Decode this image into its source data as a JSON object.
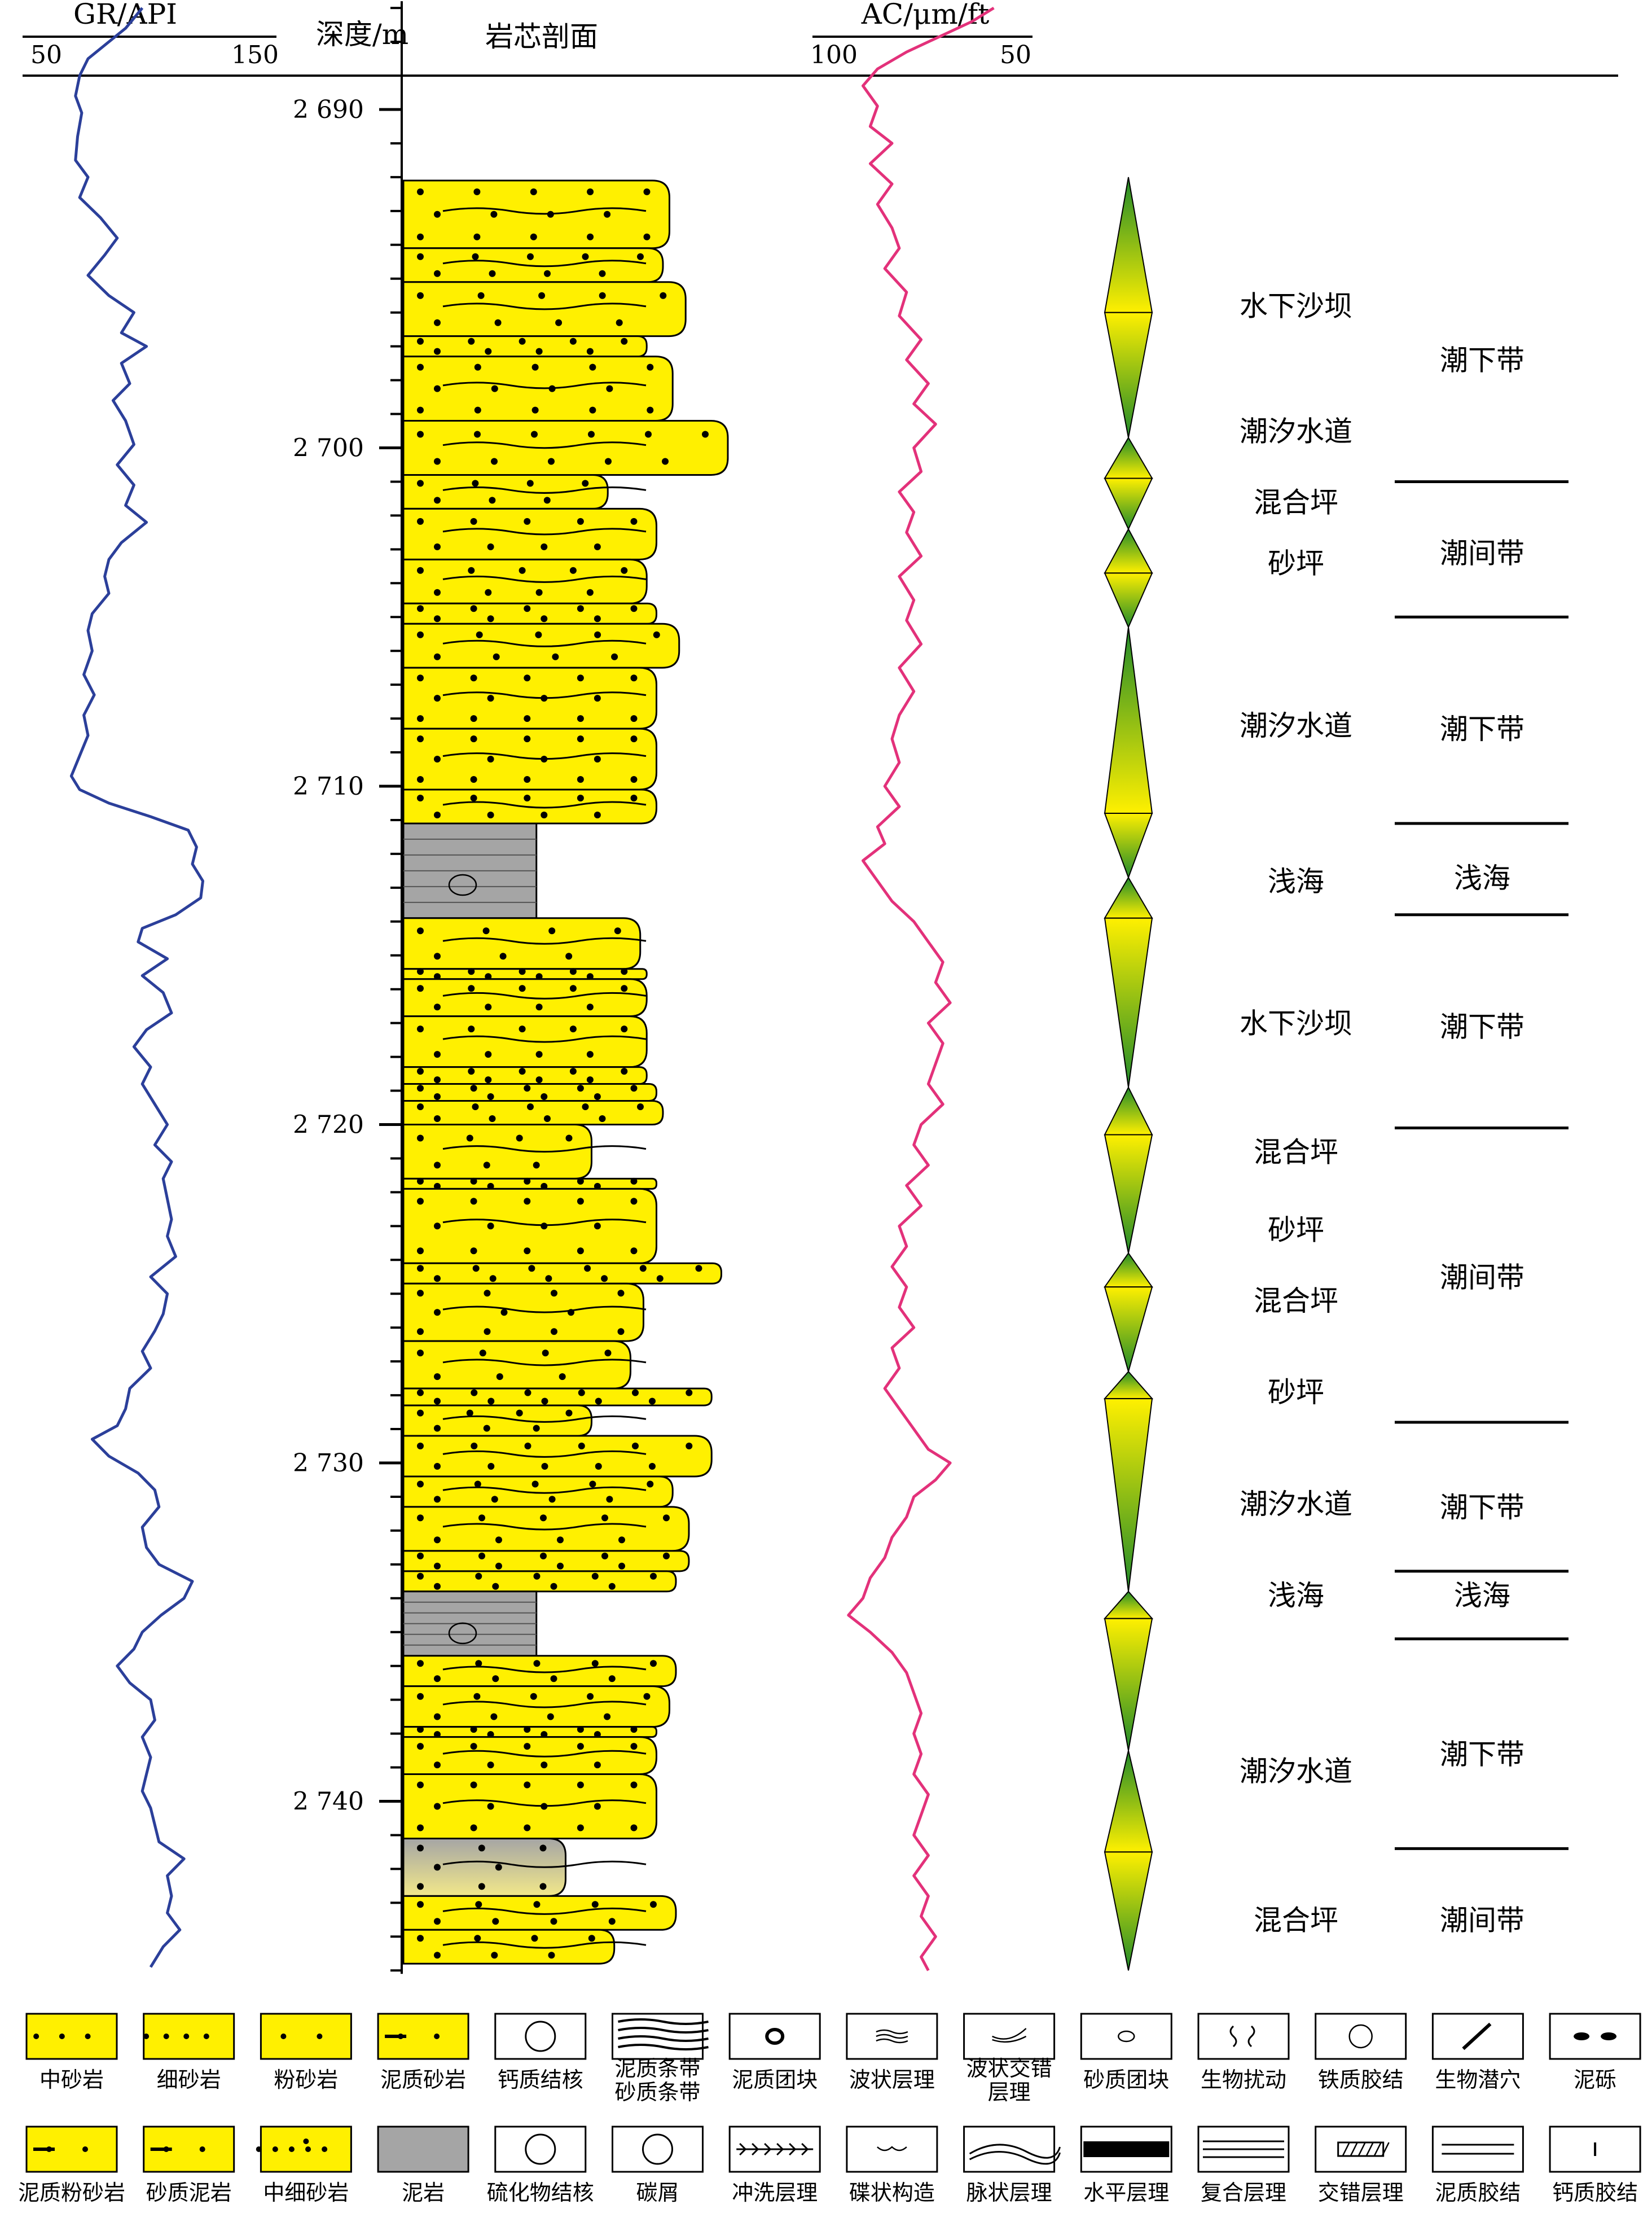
{
  "headers": {
    "gr": "GR/API",
    "gr_min": "50",
    "gr_max": "150",
    "depth": "深度/m",
    "core": "岩芯剖面",
    "ac": "AC/μm/ft",
    "ac_min": "100",
    "ac_max": "50"
  },
  "depth_scale": {
    "top": 2686.8,
    "bottom": 2745.1,
    "labels": [
      "2 690",
      "2 700",
      "2 710",
      "2 720",
      "2 730",
      "2 740"
    ],
    "values": [
      2690,
      2700,
      2710,
      2720,
      2730,
      2740
    ]
  },
  "colors": {
    "gr_curve": "#2b3f9a",
    "ac_curve": "#e3317a",
    "sand": "#fff000",
    "mud": "#a5a5a5",
    "cycle_green": "#1f8a2a",
    "cycle_yellow": "#fff000"
  },
  "lithology": [
    {
      "top": 2692.1,
      "bottom": 2694.1,
      "type": "sand",
      "grain": 0.82
    },
    {
      "top": 2694.1,
      "bottom": 2695.1,
      "type": "sand",
      "grain": 0.8
    },
    {
      "top": 2695.1,
      "bottom": 2696.7,
      "type": "sand",
      "grain": 0.87
    },
    {
      "top": 2696.7,
      "bottom": 2697.3,
      "type": "sand",
      "grain": 0.75
    },
    {
      "top": 2697.3,
      "bottom": 2699.2,
      "type": "sand",
      "grain": 0.83
    },
    {
      "top": 2699.2,
      "bottom": 2700.8,
      "type": "sand",
      "grain": 1.0
    },
    {
      "top": 2700.8,
      "bottom": 2701.8,
      "type": "sand",
      "grain": 0.63
    },
    {
      "top": 2701.8,
      "bottom": 2703.3,
      "type": "sand",
      "grain": 0.78
    },
    {
      "top": 2703.3,
      "bottom": 2704.6,
      "type": "sand",
      "grain": 0.75
    },
    {
      "top": 2704.6,
      "bottom": 2705.2,
      "type": "sand",
      "grain": 0.78
    },
    {
      "top": 2705.2,
      "bottom": 2706.5,
      "type": "sand",
      "grain": 0.85
    },
    {
      "top": 2706.5,
      "bottom": 2708.3,
      "type": "sand",
      "grain": 0.78
    },
    {
      "top": 2708.3,
      "bottom": 2710.1,
      "type": "sand",
      "grain": 0.78
    },
    {
      "top": 2710.1,
      "bottom": 2711.1,
      "type": "sand",
      "grain": 0.78
    },
    {
      "top": 2711.1,
      "bottom": 2713.9,
      "type": "mud",
      "grain": 0.41
    },
    {
      "top": 2713.9,
      "bottom": 2715.4,
      "type": "sand",
      "grain": 0.73
    },
    {
      "top": 2715.4,
      "bottom": 2715.7,
      "type": "sand",
      "grain": 0.75
    },
    {
      "top": 2715.7,
      "bottom": 2716.8,
      "type": "sand",
      "grain": 0.75
    },
    {
      "top": 2716.8,
      "bottom": 2718.3,
      "type": "sand",
      "grain": 0.75
    },
    {
      "top": 2718.3,
      "bottom": 2718.8,
      "type": "sand",
      "grain": 0.75
    },
    {
      "top": 2718.8,
      "bottom": 2719.3,
      "type": "sand",
      "grain": 0.78
    },
    {
      "top": 2719.3,
      "bottom": 2720.0,
      "type": "sand",
      "grain": 0.8
    },
    {
      "top": 2720.0,
      "bottom": 2721.6,
      "type": "silt",
      "grain": 0.58
    },
    {
      "top": 2721.6,
      "bottom": 2721.9,
      "type": "sand",
      "grain": 0.78
    },
    {
      "top": 2721.9,
      "bottom": 2724.1,
      "type": "sand",
      "grain": 0.78
    },
    {
      "top": 2724.1,
      "bottom": 2724.7,
      "type": "sand",
      "grain": 0.98
    },
    {
      "top": 2724.7,
      "bottom": 2726.4,
      "type": "sand",
      "grain": 0.74
    },
    {
      "top": 2726.4,
      "bottom": 2727.8,
      "type": "sand",
      "grain": 0.7
    },
    {
      "top": 2727.8,
      "bottom": 2728.3,
      "type": "sand",
      "grain": 0.95
    },
    {
      "top": 2728.3,
      "bottom": 2729.2,
      "type": "silt",
      "grain": 0.58
    },
    {
      "top": 2729.2,
      "bottom": 2730.4,
      "type": "sand",
      "grain": 0.95
    },
    {
      "top": 2730.4,
      "bottom": 2731.3,
      "type": "sand",
      "grain": 0.83
    },
    {
      "top": 2731.3,
      "bottom": 2732.6,
      "type": "sand",
      "grain": 0.88
    },
    {
      "top": 2732.6,
      "bottom": 2733.2,
      "type": "sand",
      "grain": 0.88
    },
    {
      "top": 2733.2,
      "bottom": 2733.8,
      "type": "sand",
      "grain": 0.84
    },
    {
      "top": 2733.8,
      "bottom": 2735.7,
      "type": "mud",
      "grain": 0.41
    },
    {
      "top": 2735.7,
      "bottom": 2736.6,
      "type": "sand",
      "grain": 0.84
    },
    {
      "top": 2736.6,
      "bottom": 2737.8,
      "type": "sand",
      "grain": 0.82
    },
    {
      "top": 2737.8,
      "bottom": 2738.1,
      "type": "sand",
      "grain": 0.78
    },
    {
      "top": 2738.1,
      "bottom": 2739.2,
      "type": "sand",
      "grain": 0.78
    },
    {
      "top": 2739.2,
      "bottom": 2741.1,
      "type": "sand",
      "grain": 0.78
    },
    {
      "top": 2741.1,
      "bottom": 2742.8,
      "type": "mixed",
      "grain": 0.5
    },
    {
      "top": 2742.8,
      "bottom": 2743.8,
      "type": "sand",
      "grain": 0.84
    },
    {
      "top": 2743.8,
      "bottom": 2744.8,
      "type": "sand",
      "grain": 0.65
    }
  ],
  "cycles": [
    {
      "top": 2692.0,
      "mid": 2696.0,
      "bottom": 2699.7
    },
    {
      "top": 2699.7,
      "mid": 2700.9,
      "bottom": 2702.4
    },
    {
      "top": 2702.4,
      "mid": 2703.7,
      "bottom": 2705.3
    },
    {
      "top": 2705.3,
      "mid": 2710.8,
      "bottom": 2712.7
    },
    {
      "top": 2712.7,
      "mid": 2713.9,
      "bottom": 2718.9
    },
    {
      "top": 2718.9,
      "mid": 2720.3,
      "bottom": 2723.8
    },
    {
      "top": 2723.8,
      "mid": 2724.8,
      "bottom": 2727.3
    },
    {
      "top": 2727.3,
      "mid": 2728.1,
      "bottom": 2733.8
    },
    {
      "top": 2733.8,
      "mid": 2734.6,
      "bottom": 2738.5
    },
    {
      "top": 2738.5,
      "mid": 2741.5,
      "bottom": 2745.0
    }
  ],
  "subfacies": [
    {
      "label": "水下沙坝",
      "depth": 2695.8
    },
    {
      "label": "潮汐水道",
      "depth": 2699.5
    },
    {
      "label": "混合坪",
      "depth": 2701.6
    },
    {
      "label": "砂坪",
      "depth": 2703.4
    },
    {
      "label": "潮汐水道",
      "depth": 2708.2
    },
    {
      "label": "浅海",
      "depth": 2712.8
    },
    {
      "label": "水下沙坝",
      "depth": 2717.0
    },
    {
      "label": "混合坪",
      "depth": 2720.8
    },
    {
      "label": "砂坪",
      "depth": 2723.1
    },
    {
      "label": "混合坪",
      "depth": 2725.2
    },
    {
      "label": "砂坪",
      "depth": 2727.9
    },
    {
      "label": "潮汐水道",
      "depth": 2731.2
    },
    {
      "label": "浅海",
      "depth": 2733.9
    },
    {
      "label": "潮汐水道",
      "depth": 2739.1
    },
    {
      "label": "混合坪",
      "depth": 2743.5
    }
  ],
  "microfacies": [
    {
      "label": "潮下带",
      "depth": 2697.4
    },
    {
      "label": "潮间带",
      "depth": 2703.1
    },
    {
      "label": "潮下带",
      "depth": 2708.3
    },
    {
      "label": "浅海",
      "depth": 2712.7
    },
    {
      "label": "潮下带",
      "depth": 2717.1
    },
    {
      "label": "潮间带",
      "depth": 2724.5
    },
    {
      "label": "潮下带",
      "depth": 2731.3
    },
    {
      "label": "浅海",
      "depth": 2733.9
    },
    {
      "label": "潮下带",
      "depth": 2738.6
    },
    {
      "label": "潮间带",
      "depth": 2743.5
    }
  ],
  "boundaries": [
    2701.0,
    2705.0,
    2711.1,
    2713.8,
    2720.1,
    2728.8,
    2733.2,
    2735.2,
    2741.4
  ],
  "gr_curve": [
    [
      2687.0,
      96
    ],
    [
      2687.6,
      88
    ],
    [
      2688.1,
      78
    ],
    [
      2688.5,
      70
    ],
    [
      2689.0,
      66
    ],
    [
      2689.6,
      64
    ],
    [
      2690.1,
      67
    ],
    [
      2690.8,
      65
    ],
    [
      2691.5,
      64
    ],
    [
      2692.0,
      70
    ],
    [
      2692.6,
      66
    ],
    [
      2693.2,
      76
    ],
    [
      2693.8,
      84
    ],
    [
      2694.3,
      78
    ],
    [
      2694.9,
      70
    ],
    [
      2695.5,
      80
    ],
    [
      2696.0,
      92
    ],
    [
      2696.6,
      86
    ],
    [
      2697.0,
      98
    ],
    [
      2697.5,
      86
    ],
    [
      2698.1,
      90
    ],
    [
      2698.6,
      82
    ],
    [
      2699.2,
      88
    ],
    [
      2699.9,
      92
    ],
    [
      2700.5,
      84
    ],
    [
      2701.1,
      92
    ],
    [
      2701.7,
      88
    ],
    [
      2702.2,
      98
    ],
    [
      2702.8,
      86
    ],
    [
      2703.3,
      80
    ],
    [
      2703.8,
      78
    ],
    [
      2704.3,
      80
    ],
    [
      2704.9,
      72
    ],
    [
      2705.4,
      70
    ],
    [
      2706.0,
      72
    ],
    [
      2706.7,
      68
    ],
    [
      2707.3,
      73
    ],
    [
      2707.9,
      68
    ],
    [
      2708.5,
      70
    ],
    [
      2709.1,
      66
    ],
    [
      2709.7,
      62
    ],
    [
      2710.1,
      66
    ],
    [
      2710.5,
      80
    ],
    [
      2710.9,
      100
    ],
    [
      2711.3,
      118
    ],
    [
      2711.8,
      122
    ],
    [
      2712.3,
      120
    ],
    [
      2712.8,
      125
    ],
    [
      2713.3,
      124
    ],
    [
      2713.8,
      112
    ],
    [
      2714.2,
      96
    ],
    [
      2714.6,
      94
    ],
    [
      2715.1,
      108
    ],
    [
      2715.6,
      96
    ],
    [
      2716.1,
      106
    ],
    [
      2716.7,
      110
    ],
    [
      2717.2,
      98
    ],
    [
      2717.7,
      92
    ],
    [
      2718.3,
      100
    ],
    [
      2718.8,
      96
    ],
    [
      2719.4,
      102
    ],
    [
      2720.0,
      108
    ],
    [
      2720.6,
      102
    ],
    [
      2721.1,
      110
    ],
    [
      2721.6,
      106
    ],
    [
      2722.2,
      108
    ],
    [
      2722.8,
      110
    ],
    [
      2723.3,
      108
    ],
    [
      2723.9,
      112
    ],
    [
      2724.5,
      100
    ],
    [
      2725.0,
      108
    ],
    [
      2725.6,
      106
    ],
    [
      2726.1,
      102
    ],
    [
      2726.7,
      96
    ],
    [
      2727.2,
      100
    ],
    [
      2727.8,
      90
    ],
    [
      2728.4,
      88
    ],
    [
      2728.9,
      84
    ],
    [
      2729.3,
      72
    ],
    [
      2729.8,
      80
    ],
    [
      2730.3,
      94
    ],
    [
      2730.8,
      102
    ],
    [
      2731.3,
      104
    ],
    [
      2731.9,
      96
    ],
    [
      2732.5,
      98
    ],
    [
      2733.0,
      104
    ],
    [
      2733.5,
      120
    ],
    [
      2734.0,
      116
    ],
    [
      2734.5,
      105
    ],
    [
      2735.0,
      96
    ],
    [
      2735.5,
      92
    ],
    [
      2736.0,
      84
    ],
    [
      2736.5,
      90
    ],
    [
      2737.0,
      100
    ],
    [
      2737.6,
      102
    ],
    [
      2738.1,
      96
    ],
    [
      2738.7,
      100
    ],
    [
      2739.2,
      98
    ],
    [
      2739.7,
      96
    ],
    [
      2740.2,
      100
    ],
    [
      2740.7,
      102
    ],
    [
      2741.2,
      104
    ],
    [
      2741.7,
      116
    ],
    [
      2742.2,
      108
    ],
    [
      2742.8,
      110
    ],
    [
      2743.3,
      108
    ],
    [
      2743.8,
      114
    ],
    [
      2744.3,
      106
    ],
    [
      2744.9,
      100
    ]
  ],
  "ac_curve": [
    [
      2687.0,
      56
    ],
    [
      2687.4,
      62
    ],
    [
      2687.9,
      72
    ],
    [
      2688.3,
      80
    ],
    [
      2688.8,
      88
    ],
    [
      2689.3,
      92
    ],
    [
      2689.9,
      88
    ],
    [
      2690.5,
      90
    ],
    [
      2691.0,
      84
    ],
    [
      2691.6,
      90
    ],
    [
      2692.2,
      84
    ],
    [
      2692.8,
      88
    ],
    [
      2693.5,
      84
    ],
    [
      2694.1,
      82
    ],
    [
      2694.7,
      86
    ],
    [
      2695.4,
      80
    ],
    [
      2696.1,
      82
    ],
    [
      2696.8,
      76
    ],
    [
      2697.4,
      80
    ],
    [
      2698.1,
      74
    ],
    [
      2698.7,
      78
    ],
    [
      2699.3,
      72
    ],
    [
      2700.0,
      78
    ],
    [
      2700.7,
      76
    ],
    [
      2701.3,
      82
    ],
    [
      2701.9,
      78
    ],
    [
      2702.5,
      80
    ],
    [
      2703.2,
      76
    ],
    [
      2703.8,
      82
    ],
    [
      2704.5,
      78
    ],
    [
      2705.1,
      80
    ],
    [
      2705.8,
      76
    ],
    [
      2706.5,
      82
    ],
    [
      2707.2,
      78
    ],
    [
      2707.9,
      82
    ],
    [
      2708.6,
      84
    ],
    [
      2709.3,
      82
    ],
    [
      2710.0,
      86
    ],
    [
      2710.6,
      82
    ],
    [
      2711.2,
      88
    ],
    [
      2711.7,
      86
    ],
    [
      2712.2,
      92
    ],
    [
      2712.8,
      88
    ],
    [
      2713.4,
      84
    ],
    [
      2714.0,
      78
    ],
    [
      2714.6,
      74
    ],
    [
      2715.2,
      70
    ],
    [
      2715.8,
      72
    ],
    [
      2716.4,
      68
    ],
    [
      2717.0,
      74
    ],
    [
      2717.6,
      70
    ],
    [
      2718.2,
      72
    ],
    [
      2718.8,
      74
    ],
    [
      2719.4,
      70
    ],
    [
      2720.0,
      76
    ],
    [
      2720.6,
      78
    ],
    [
      2721.2,
      74
    ],
    [
      2721.8,
      80
    ],
    [
      2722.4,
      76
    ],
    [
      2723.0,
      82
    ],
    [
      2723.6,
      80
    ],
    [
      2724.2,
      84
    ],
    [
      2724.8,
      80
    ],
    [
      2725.4,
      82
    ],
    [
      2726.0,
      78
    ],
    [
      2726.6,
      84
    ],
    [
      2727.2,
      82
    ],
    [
      2727.8,
      86
    ],
    [
      2728.4,
      82
    ],
    [
      2729.0,
      78
    ],
    [
      2729.6,
      74
    ],
    [
      2730.0,
      68
    ],
    [
      2730.5,
      72
    ],
    [
      2731.0,
      78
    ],
    [
      2731.6,
      80
    ],
    [
      2732.2,
      84
    ],
    [
      2732.8,
      86
    ],
    [
      2733.4,
      90
    ],
    [
      2734.0,
      92
    ],
    [
      2734.5,
      96
    ],
    [
      2735.0,
      90
    ],
    [
      2735.6,
      84
    ],
    [
      2736.2,
      80
    ],
    [
      2736.8,
      78
    ],
    [
      2737.4,
      76
    ],
    [
      2738.0,
      78
    ],
    [
      2738.6,
      76
    ],
    [
      2739.2,
      78
    ],
    [
      2739.8,
      74
    ],
    [
      2740.4,
      76
    ],
    [
      2741.0,
      78
    ],
    [
      2741.6,
      74
    ],
    [
      2742.2,
      78
    ],
    [
      2742.8,
      74
    ],
    [
      2743.4,
      76
    ],
    [
      2744.0,
      72
    ],
    [
      2744.6,
      76
    ],
    [
      2745.0,
      74
    ]
  ],
  "legend_row1": [
    {
      "name": "中砂岩",
      "pattern": "medium-sand"
    },
    {
      "name": "细砂岩",
      "pattern": "fine-sand"
    },
    {
      "name": "粉砂岩",
      "pattern": "siltstone"
    },
    {
      "name": "泥质砂岩",
      "pattern": "muddy-sand"
    },
    {
      "name": "钙质结核",
      "pattern": "calc-nodule"
    },
    {
      "name": "泥质条带\n砂质条带",
      "pattern": "bands"
    },
    {
      "name": "泥质团块",
      "pattern": "mud-clump"
    },
    {
      "name": "波状层理",
      "pattern": "wavy"
    },
    {
      "name": "波状交错\n层理",
      "pattern": "wavy-cross"
    },
    {
      "name": "砂质团块",
      "pattern": "sand-clump"
    },
    {
      "name": "生物扰动",
      "pattern": "bioturbation"
    },
    {
      "name": "铁质胶结",
      "pattern": "fe-cement"
    },
    {
      "name": "生物潜穴",
      "pattern": "burrow"
    },
    {
      "name": "泥砾",
      "pattern": "mud-gravel"
    }
  ],
  "legend_row2": [
    {
      "name": "泥质粉砂岩",
      "pattern": "muddy-silt"
    },
    {
      "name": "砂质泥岩",
      "pattern": "sandy-mud"
    },
    {
      "name": "中细砂岩",
      "pattern": "med-fine-sand"
    },
    {
      "name": "泥岩",
      "pattern": "mudstone"
    },
    {
      "name": "硫化物结核",
      "pattern": "sulfide-nodule"
    },
    {
      "name": "碳屑",
      "pattern": "carbon"
    },
    {
      "name": "冲洗层理",
      "pattern": "swash"
    },
    {
      "name": "碟状构造",
      "pattern": "dish"
    },
    {
      "name": "脉状层理",
      "pattern": "flaser"
    },
    {
      "name": "水平层理",
      "pattern": "horizontal"
    },
    {
      "name": "复合层理",
      "pattern": "composite"
    },
    {
      "name": "交错层理",
      "pattern": "cross"
    },
    {
      "name": "泥质胶结",
      "pattern": "mud-cement"
    },
    {
      "name": "钙质胶结",
      "pattern": "ca-cement"
    }
  ]
}
